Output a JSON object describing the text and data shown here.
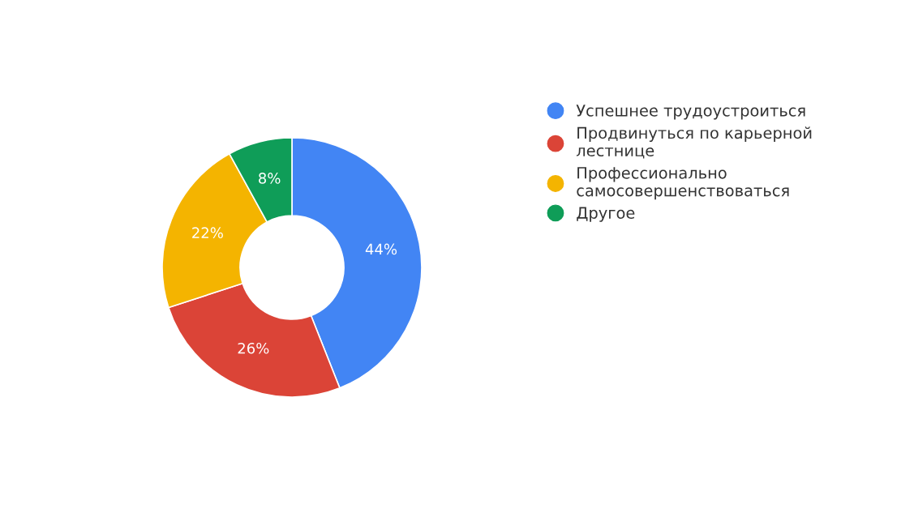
{
  "chart_data": {
    "type": "donut",
    "categories": [
      "Успешнее трудоустроиться",
      "Продвинуться по карьерной лестнице",
      "Профессионально самосовершенствоваться",
      "Другое"
    ],
    "values": [
      44,
      26,
      22,
      8
    ],
    "value_labels": [
      "44%",
      "26%",
      "22%",
      "8%"
    ],
    "colors": [
      "#4285f4",
      "#db4437",
      "#f4b400",
      "#0f9d58"
    ],
    "legend": "right"
  }
}
